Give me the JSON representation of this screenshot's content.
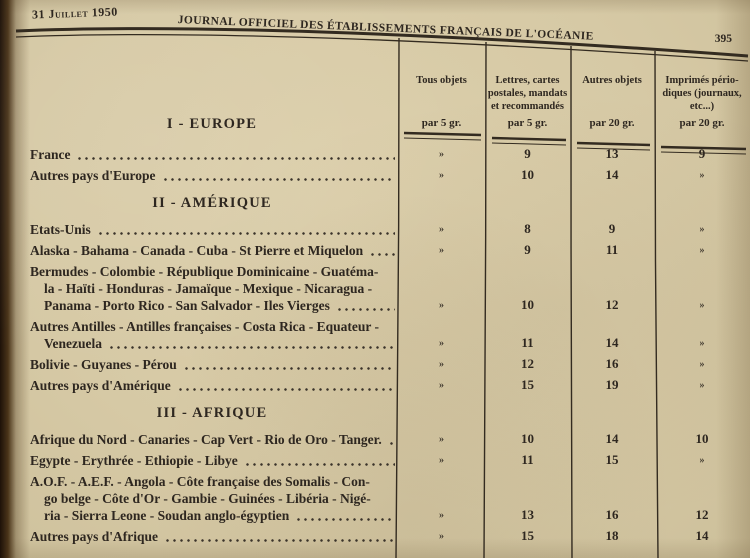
{
  "page": {
    "date": "31 Juillet 1950",
    "journal_title": "JOURNAL OFFICIEL DES ÉTABLISSEMENTS FRANÇAIS DE L'OCÉANIE",
    "page_number": "395"
  },
  "table": {
    "columns": [
      {
        "title_lines": [
          "Tous objets"
        ],
        "unit": "par 5 gr."
      },
      {
        "title_lines": [
          "Lettres, cartes",
          "postales, mandats",
          "et recommandés"
        ],
        "unit": "par 5 gr."
      },
      {
        "title_lines": [
          "Autres objets"
        ],
        "unit": "par 20 gr."
      },
      {
        "title_lines": [
          "Imprimés pério-",
          "diques (journaux,",
          "etc...)"
        ],
        "unit": "par 20 gr."
      }
    ],
    "sections": [
      {
        "heading": "I - EUROPE",
        "rows": [
          {
            "label_lines": [
              "France"
            ],
            "values": [
              "»",
              "9",
              "13",
              "9"
            ]
          },
          {
            "label_lines": [
              "Autres pays d'Europe"
            ],
            "values": [
              "»",
              "10",
              "14",
              "»"
            ]
          }
        ]
      },
      {
        "heading": "II - AMÉRIQUE",
        "rows": [
          {
            "label_lines": [
              "Etats-Unis"
            ],
            "values": [
              "»",
              "8",
              "9",
              "»"
            ]
          },
          {
            "label_lines": [
              "Alaska - Bahama - Canada - Cuba - St Pierre et Miquelon"
            ],
            "values": [
              "»",
              "9",
              "11",
              "»"
            ]
          },
          {
            "label_lines": [
              "Bermudes - Colombie - République Dominicaine - Guatéma-",
              "la - Haïti - Honduras - Jamaïque - Mexique - Nicaragua -",
              "Panama - Porto Rico - San Salvador - Iles Vierges"
            ],
            "values": [
              "»",
              "10",
              "12",
              "»"
            ]
          },
          {
            "label_lines": [
              "Autres Antilles - Antilles françaises - Costa Rica - Equateur -",
              "Venezuela"
            ],
            "values": [
              "»",
              "11",
              "14",
              "»"
            ]
          },
          {
            "label_lines": [
              "Bolivie - Guyanes - Pérou"
            ],
            "values": [
              "»",
              "12",
              "16",
              "»"
            ]
          },
          {
            "label_lines": [
              "Autres pays d'Amérique"
            ],
            "values": [
              "»",
              "15",
              "19",
              "»"
            ]
          }
        ]
      },
      {
        "heading": "III - AFRIQUE",
        "rows": [
          {
            "label_lines": [
              "Afrique du Nord - Canaries - Cap Vert - Rio de Oro - Tanger."
            ],
            "values": [
              "»",
              "10",
              "14",
              "10"
            ]
          },
          {
            "label_lines": [
              "Egypte - Erythrée - Ethiopie - Libye"
            ],
            "values": [
              "»",
              "11",
              "15",
              "»"
            ]
          },
          {
            "label_lines": [
              "A.O.F. - A.E.F. - Angola - Côte française des Somalis - Con-",
              "go belge - Côte d'Or - Gambie - Guinées - Libéria - Nigé-",
              "ria - Sierra Leone - Soudan anglo-égyptien"
            ],
            "values": [
              "»",
              "13",
              "16",
              "12"
            ]
          },
          {
            "label_lines": [
              "Autres pays d'Afrique"
            ],
            "values": [
              "»",
              "15",
              "18",
              "14"
            ]
          }
        ]
      }
    ]
  }
}
